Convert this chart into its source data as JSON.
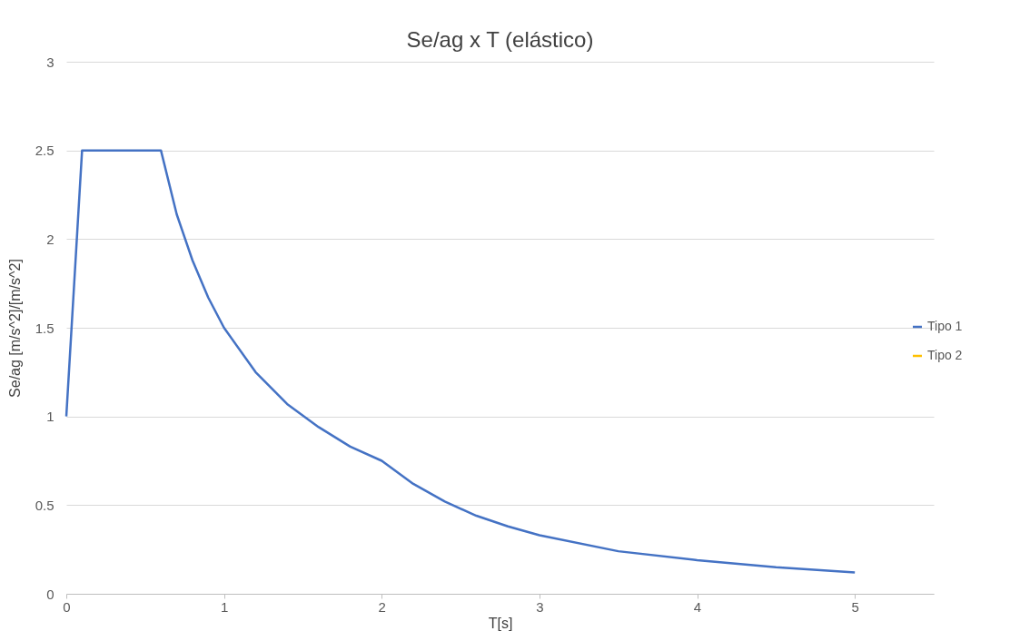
{
  "chart_data": {
    "type": "line",
    "title": "Se/ag x T (elástico)",
    "xlabel": "T[s]",
    "ylabel": "Se/ag [m/s^2]/[m/s^2]",
    "x": [
      0,
      0.1,
      0.6,
      0.7,
      0.8,
      0.9,
      1.0,
      1.2,
      1.4,
      1.6,
      1.8,
      2.0,
      2.2,
      2.4,
      2.6,
      2.8,
      3.0,
      3.5,
      4.0,
      4.5,
      5.0
    ],
    "series": [
      {
        "name": "Tipo 1",
        "color": "#4472c4",
        "values": [
          1,
          2.5,
          2.5,
          2.14,
          1.88,
          1.67,
          1.5,
          1.25,
          1.07,
          0.94,
          0.83,
          0.75,
          0.62,
          0.52,
          0.44,
          0.38,
          0.33,
          0.24,
          0.19,
          0.15,
          0.12
        ]
      },
      {
        "name": "Tipo 2",
        "color": "#ffc000",
        "values": [
          null,
          null,
          null,
          null,
          null,
          null,
          null,
          null,
          null,
          null,
          null,
          null,
          null,
          null,
          null,
          null,
          null,
          null,
          null,
          null,
          null
        ]
      }
    ],
    "xlim": [
      0,
      5.5
    ],
    "xticks": [
      0,
      1,
      2,
      3,
      4,
      5
    ],
    "ylim": [
      0,
      3
    ],
    "yticks": [
      0,
      0.5,
      1,
      1.5,
      2,
      2.5,
      3
    ],
    "grid": "y",
    "legend": "right",
    "marker": "none",
    "line_style": "solid"
  }
}
